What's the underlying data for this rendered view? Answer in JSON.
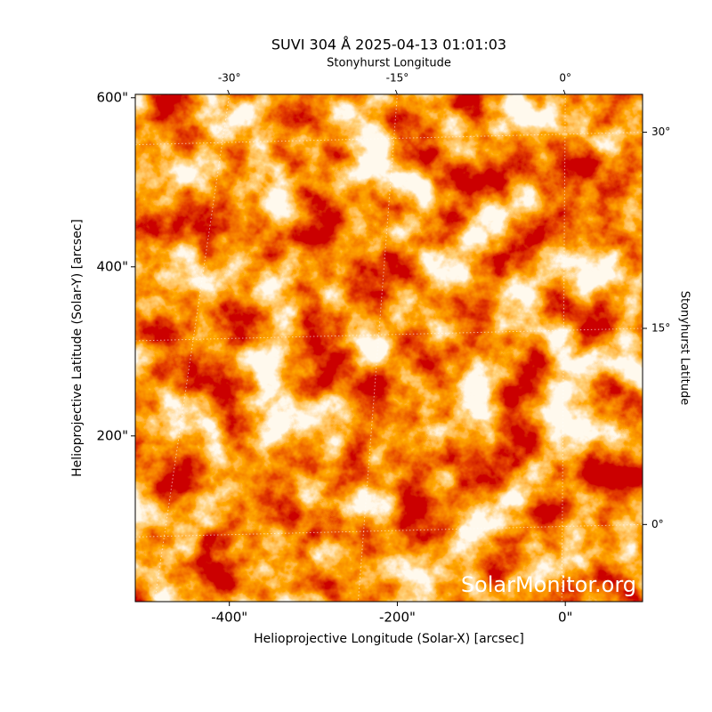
{
  "chart_data": {
    "type": "image",
    "title": "SUVI 304 Å 2025-04-13 01:01:03",
    "xlabel": "Helioprojective Longitude (Solar-X) [arcsec]",
    "ylabel": "Helioprojective Latitude (Solar-Y) [arcsec]",
    "x2label": "Stonyhurst Longitude",
    "y2label": "Stonyhurst Latitude",
    "watermark": "SolarMonitor.org",
    "xlim": [
      -512,
      92
    ],
    "ylim": [
      4,
      604
    ],
    "xticks": [
      {
        "value": -400,
        "label": "-400\""
      },
      {
        "value": -200,
        "label": "-200\""
      },
      {
        "value": 0,
        "label": "0\""
      }
    ],
    "yticks": [
      {
        "value": 200,
        "label": "200\""
      },
      {
        "value": 400,
        "label": "400\""
      },
      {
        "value": 600,
        "label": "600\""
      }
    ],
    "x2lim": [
      -38.4,
      6.9
    ],
    "x2ticks": [
      {
        "value": -30,
        "label": "-30°"
      },
      {
        "value": -15,
        "label": "-15°"
      },
      {
        "value": 0,
        "label": "0°"
      }
    ],
    "y2lim": [
      -5.9,
      32.9
    ],
    "y2ticks": [
      {
        "value": 0,
        "label": "0°"
      },
      {
        "value": 15,
        "label": "15°"
      },
      {
        "value": 30,
        "label": "30°"
      }
    ],
    "grid": true
  }
}
